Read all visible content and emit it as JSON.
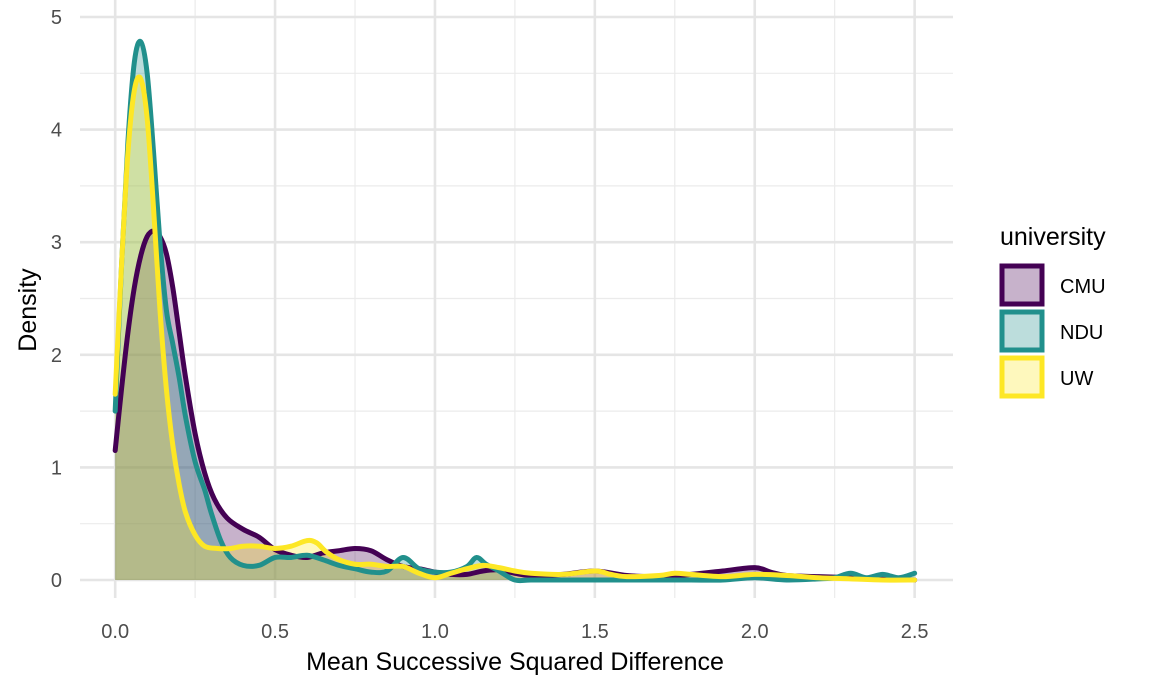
{
  "chart_data": {
    "type": "area",
    "title": "",
    "xlabel": "Mean Successive Squared Difference",
    "ylabel": "Density",
    "xlim": [
      -0.11,
      2.62
    ],
    "ylim": [
      0,
      5
    ],
    "x_ticks": [
      "0.0",
      "0.5",
      "1.0",
      "1.5",
      "2.0",
      "2.5"
    ],
    "y_ticks": [
      "0",
      "1",
      "2",
      "3",
      "4",
      "5"
    ],
    "grid": true,
    "legend": {
      "title": "university",
      "placement": "right"
    },
    "series": [
      {
        "name": "CMU",
        "line_color": "#440154",
        "fill_color": "#440154",
        "points": [
          [
            0.0,
            1.15
          ],
          [
            0.02,
            1.7
          ],
          [
            0.04,
            2.2
          ],
          [
            0.06,
            2.6
          ],
          [
            0.08,
            2.88
          ],
          [
            0.1,
            3.05
          ],
          [
            0.12,
            3.1
          ],
          [
            0.14,
            3.05
          ],
          [
            0.16,
            2.9
          ],
          [
            0.18,
            2.6
          ],
          [
            0.2,
            2.2
          ],
          [
            0.22,
            1.8
          ],
          [
            0.25,
            1.3
          ],
          [
            0.28,
            0.95
          ],
          [
            0.31,
            0.72
          ],
          [
            0.35,
            0.55
          ],
          [
            0.4,
            0.45
          ],
          [
            0.45,
            0.38
          ],
          [
            0.5,
            0.27
          ],
          [
            0.55,
            0.22
          ],
          [
            0.6,
            0.2
          ],
          [
            0.65,
            0.24
          ],
          [
            0.7,
            0.26
          ],
          [
            0.75,
            0.28
          ],
          [
            0.8,
            0.26
          ],
          [
            0.85,
            0.18
          ],
          [
            0.9,
            0.12
          ],
          [
            0.95,
            0.1
          ],
          [
            1.0,
            0.07
          ],
          [
            1.05,
            0.05
          ],
          [
            1.1,
            0.05
          ],
          [
            1.15,
            0.08
          ],
          [
            1.2,
            0.09
          ],
          [
            1.25,
            0.06
          ],
          [
            1.3,
            0.04
          ],
          [
            1.4,
            0.05
          ],
          [
            1.5,
            0.08
          ],
          [
            1.6,
            0.04
          ],
          [
            1.7,
            0.03
          ],
          [
            1.8,
            0.05
          ],
          [
            1.9,
            0.08
          ],
          [
            2.0,
            0.11
          ],
          [
            2.05,
            0.07
          ],
          [
            2.1,
            0.04
          ],
          [
            2.2,
            0.03
          ],
          [
            2.3,
            0.02
          ],
          [
            2.4,
            0.01
          ],
          [
            2.5,
            0.0
          ]
        ]
      },
      {
        "name": "NDU",
        "line_color": "#21908C",
        "fill_color": "#21908C",
        "points": [
          [
            0.0,
            1.5
          ],
          [
            0.02,
            2.8
          ],
          [
            0.04,
            3.9
          ],
          [
            0.06,
            4.6
          ],
          [
            0.08,
            4.78
          ],
          [
            0.1,
            4.5
          ],
          [
            0.12,
            3.8
          ],
          [
            0.14,
            3.0
          ],
          [
            0.16,
            2.4
          ],
          [
            0.18,
            2.1
          ],
          [
            0.2,
            1.8
          ],
          [
            0.22,
            1.45
          ],
          [
            0.25,
            1.05
          ],
          [
            0.28,
            0.8
          ],
          [
            0.3,
            0.6
          ],
          [
            0.33,
            0.35
          ],
          [
            0.36,
            0.2
          ],
          [
            0.4,
            0.13
          ],
          [
            0.45,
            0.13
          ],
          [
            0.5,
            0.2
          ],
          [
            0.55,
            0.2
          ],
          [
            0.6,
            0.22
          ],
          [
            0.65,
            0.18
          ],
          [
            0.7,
            0.13
          ],
          [
            0.75,
            0.1
          ],
          [
            0.8,
            0.07
          ],
          [
            0.85,
            0.08
          ],
          [
            0.9,
            0.2
          ],
          [
            0.95,
            0.1
          ],
          [
            1.0,
            0.07
          ],
          [
            1.05,
            0.07
          ],
          [
            1.1,
            0.12
          ],
          [
            1.13,
            0.2
          ],
          [
            1.16,
            0.14
          ],
          [
            1.2,
            0.08
          ],
          [
            1.25,
            0.0
          ],
          [
            1.3,
            0.0
          ],
          [
            1.4,
            0.0
          ],
          [
            1.5,
            0.0
          ],
          [
            1.6,
            0.0
          ],
          [
            1.7,
            0.0
          ],
          [
            1.8,
            0.0
          ],
          [
            1.9,
            0.0
          ],
          [
            2.0,
            0.02
          ],
          [
            2.1,
            0.0
          ],
          [
            2.2,
            0.01
          ],
          [
            2.25,
            0.02
          ],
          [
            2.3,
            0.06
          ],
          [
            2.35,
            0.02
          ],
          [
            2.4,
            0.05
          ],
          [
            2.45,
            0.02
          ],
          [
            2.5,
            0.06
          ]
        ]
      },
      {
        "name": "UW",
        "line_color": "#FDE725",
        "fill_color": "#FDE725",
        "points": [
          [
            0.0,
            1.65
          ],
          [
            0.02,
            2.8
          ],
          [
            0.04,
            3.8
          ],
          [
            0.06,
            4.35
          ],
          [
            0.08,
            4.45
          ],
          [
            0.1,
            4.1
          ],
          [
            0.12,
            3.3
          ],
          [
            0.14,
            2.4
          ],
          [
            0.16,
            1.7
          ],
          [
            0.18,
            1.2
          ],
          [
            0.2,
            0.85
          ],
          [
            0.22,
            0.6
          ],
          [
            0.25,
            0.4
          ],
          [
            0.28,
            0.3
          ],
          [
            0.32,
            0.28
          ],
          [
            0.36,
            0.28
          ],
          [
            0.4,
            0.3
          ],
          [
            0.45,
            0.3
          ],
          [
            0.5,
            0.28
          ],
          [
            0.55,
            0.3
          ],
          [
            0.6,
            0.35
          ],
          [
            0.63,
            0.33
          ],
          [
            0.66,
            0.25
          ],
          [
            0.7,
            0.18
          ],
          [
            0.75,
            0.14
          ],
          [
            0.8,
            0.14
          ],
          [
            0.85,
            0.12
          ],
          [
            0.9,
            0.12
          ],
          [
            0.95,
            0.06
          ],
          [
            1.0,
            0.02
          ],
          [
            1.05,
            0.06
          ],
          [
            1.1,
            0.1
          ],
          [
            1.15,
            0.13
          ],
          [
            1.2,
            0.11
          ],
          [
            1.25,
            0.08
          ],
          [
            1.3,
            0.06
          ],
          [
            1.4,
            0.05
          ],
          [
            1.5,
            0.08
          ],
          [
            1.55,
            0.05
          ],
          [
            1.6,
            0.03
          ],
          [
            1.7,
            0.04
          ],
          [
            1.75,
            0.06
          ],
          [
            1.8,
            0.05
          ],
          [
            1.9,
            0.03
          ],
          [
            2.0,
            0.05
          ],
          [
            2.1,
            0.04
          ],
          [
            2.2,
            0.02
          ],
          [
            2.3,
            0.01
          ],
          [
            2.4,
            0.0
          ],
          [
            2.5,
            0.0
          ]
        ]
      }
    ]
  }
}
